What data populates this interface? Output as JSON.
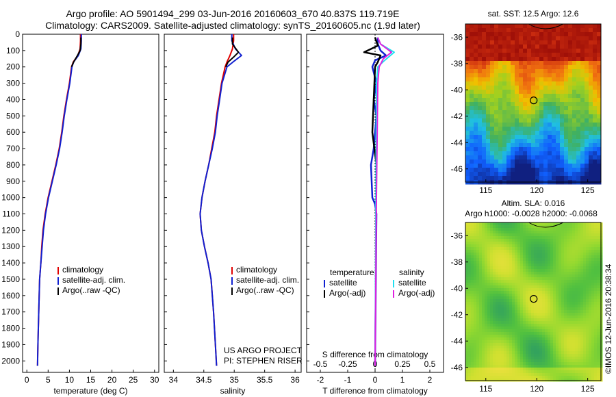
{
  "header": {
    "line1": "Argo profile: AO 5901494_299 03-Jun-2016 20160603_670 40.837S 119.719E",
    "line2": "Climatology: CARS2009. Satellite-adjusted climatology: synTS_20160605.nc (1.9d later)"
  },
  "stamp": "©IMOS 12-Jun-2016 20:38:34",
  "colors": {
    "climatology": "#e00000",
    "satellite": "#1020d0",
    "argo": "#000000",
    "salinity_satellite": "#20e0f0",
    "salinity_argo": "#e020e0"
  },
  "chart_data": [
    {
      "type": "line",
      "panel": "temperature",
      "xlabel": "temperature (deg C)",
      "ylabel": "",
      "xlim": [
        -1,
        31
      ],
      "ylim": [
        2070,
        0
      ],
      "xticks": [
        0,
        5,
        10,
        15,
        20,
        25,
        30
      ],
      "yticks": [
        0,
        100,
        200,
        300,
        400,
        500,
        600,
        700,
        800,
        900,
        1000,
        1100,
        1200,
        1300,
        1400,
        1500,
        1600,
        1700,
        1800,
        1900,
        2000
      ],
      "legend": [
        "climatology",
        "satellite-adj. clim.",
        "Argo(..raw -QC)"
      ],
      "series": [
        {
          "name": "climatology",
          "color": "#e00000",
          "x": [
            12.6,
            12.6,
            12.5,
            12.0,
            10.9,
            10.5,
            10.0,
            9.3,
            8.7,
            8.2,
            7.6,
            6.8,
            5.9,
            5.0,
            4.3,
            3.8,
            3.5,
            3.3,
            3.0,
            2.8,
            2.6,
            2.5
          ],
          "y": [
            0,
            40,
            90,
            130,
            170,
            200,
            300,
            400,
            500,
            600,
            700,
            800,
            900,
            1000,
            1100,
            1200,
            1300,
            1400,
            1500,
            1700,
            1900,
            2030
          ]
        },
        {
          "name": "satellite-adj. clim.",
          "color": "#1020d0",
          "x": [
            12.8,
            12.8,
            12.7,
            12.1,
            11.0,
            10.6,
            10.1,
            9.4,
            8.8,
            8.3,
            7.7,
            6.9,
            6.0,
            5.1,
            4.4,
            3.9,
            3.6,
            3.3,
            3.0,
            2.8,
            2.6,
            2.5
          ],
          "y": [
            0,
            40,
            90,
            130,
            170,
            200,
            300,
            400,
            500,
            600,
            700,
            800,
            900,
            1000,
            1100,
            1200,
            1300,
            1400,
            1500,
            1700,
            1900,
            2030
          ]
        },
        {
          "name": "Argo(..raw -QC)",
          "color": "#000000",
          "x": [
            12.7,
            12.7,
            12.5,
            11.9,
            11.0,
            10.5
          ],
          "y": [
            20,
            60,
            100,
            130,
            170,
            200
          ]
        }
      ]
    },
    {
      "type": "line",
      "panel": "salinity",
      "xlabel": "salinity",
      "ylabel": "",
      "xlim": [
        33.85,
        36.1
      ],
      "ylim": [
        2070,
        0
      ],
      "xticks": [
        34,
        34.5,
        35,
        35.5,
        36
      ],
      "legend": [
        "climatology",
        "satellite-adj. clim.",
        "Argo(..raw -QC)"
      ],
      "series": [
        {
          "name": "climatology",
          "color": "#e00000",
          "x": [
            34.99,
            34.99,
            34.97,
            34.93,
            34.88,
            34.85,
            34.79,
            34.75,
            34.71,
            34.68,
            34.63,
            34.58,
            34.52,
            34.47,
            34.44,
            34.46,
            34.51,
            34.57,
            34.62,
            34.66,
            34.69,
            34.71
          ],
          "y": [
            0,
            40,
            90,
            130,
            170,
            200,
            300,
            400,
            500,
            600,
            700,
            800,
            900,
            1000,
            1100,
            1200,
            1300,
            1400,
            1500,
            1700,
            1900,
            2030
          ]
        },
        {
          "name": "satellite-adj. clim.",
          "color": "#1020d0",
          "x": [
            34.96,
            34.96,
            35.02,
            35.12,
            34.98,
            34.88,
            34.8,
            34.76,
            34.72,
            34.69,
            34.64,
            34.58,
            34.52,
            34.47,
            34.44,
            34.46,
            34.51,
            34.57,
            34.62,
            34.66,
            34.69,
            34.71
          ],
          "y": [
            0,
            40,
            90,
            130,
            170,
            200,
            300,
            400,
            500,
            600,
            700,
            800,
            900,
            1000,
            1100,
            1200,
            1300,
            1400,
            1500,
            1700,
            1900,
            2030
          ]
        },
        {
          "name": "Argo(..raw -QC)",
          "color": "#000000",
          "x": [
            34.97,
            34.97,
            35.07,
            34.99,
            34.9,
            34.86
          ],
          "y": [
            20,
            60,
            110,
            140,
            170,
            200
          ]
        }
      ]
    },
    {
      "type": "line",
      "panel": "difference",
      "xlabel": "T difference from climatology",
      "top_label": "S difference from climatology",
      "xlim": [
        -2.5,
        2.5
      ],
      "ylim": [
        2070,
        0
      ],
      "xticks": [
        -2,
        -1,
        0,
        1,
        2
      ],
      "top_xticks": [
        "-0.5",
        "-0.25",
        "0",
        "0.25",
        "0.5"
      ],
      "legend_temperature": {
        "title": "temperature",
        "items": [
          "satellite",
          "Argo(-adj)"
        ]
      },
      "legend_salinity": {
        "title": "salinity",
        "items": [
          "satellite",
          "Argo(-adj)"
        ]
      },
      "series": [
        {
          "name": "satellite",
          "group": "temperature",
          "color": "#1020d0",
          "x": [
            0.1,
            0.1,
            0.2,
            0.4,
            0.0,
            -0.1,
            0.05,
            -0.05,
            0.05,
            0.0,
            -0.05,
            -0.15,
            -0.1,
            0.0,
            0.05,
            0.0
          ],
          "y": [
            20,
            60,
            100,
            130,
            160,
            200,
            300,
            400,
            500,
            600,
            700,
            800,
            1000,
            1040,
            1100,
            2030
          ]
        },
        {
          "name": "Argo(-adj)",
          "group": "temperature",
          "color": "#000000",
          "x": [
            0.0,
            0.1,
            -0.4,
            0.2,
            0.1,
            0.0,
            -0.1,
            0.05
          ],
          "y": [
            20,
            70,
            110,
            130,
            170,
            200,
            600,
            800
          ]
        },
        {
          "name": "satellite",
          "group": "salinity",
          "color": "#20e0f0",
          "x": [
            0.1,
            0.2,
            0.7,
            0.35,
            0.1,
            0.05,
            0.0
          ],
          "y": [
            20,
            60,
            110,
            160,
            200,
            300,
            2030
          ]
        },
        {
          "name": "Argo(-adj)",
          "group": "salinity",
          "color": "#e020e0",
          "x": [
            0.1,
            0.2,
            0.6,
            0.3,
            0.15,
            0.1,
            0.05,
            0.0
          ],
          "y": [
            20,
            60,
            110,
            150,
            200,
            300,
            1000,
            2030
          ]
        }
      ]
    },
    {
      "type": "heatmap",
      "panel": "sst-map",
      "title": "sat. SST: 12.5 Argo: 12.6",
      "xlim": [
        113,
        126.3
      ],
      "ylim": [
        -47,
        -35
      ],
      "xticks": [
        115,
        120,
        125
      ],
      "yticks": [
        -36,
        -38,
        -40,
        -42,
        -44,
        -46
      ],
      "marker": {
        "lon": 119.7,
        "lat": -40.8
      },
      "colorscale": [
        "#102080",
        "#1060ff",
        "#20c0e0",
        "#40b060",
        "#a0d020",
        "#f0c000",
        "#f07010",
        "#d03010",
        "#a01008"
      ]
    },
    {
      "type": "heatmap",
      "panel": "sla-map",
      "title": "Altim. SLA: 0.016",
      "subtitle": "Argo h1000: -0.0028 h2000: -0.0068",
      "xlim": [
        113,
        126.3
      ],
      "ylim": [
        -47,
        -35
      ],
      "xticks": [
        115,
        120,
        125
      ],
      "yticks": [
        -36,
        -38,
        -40,
        -42,
        -44,
        -46
      ],
      "marker": {
        "lon": 119.7,
        "lat": -40.8
      },
      "colorscale": [
        "#30a060",
        "#50c040",
        "#90d830",
        "#d0e030",
        "#f0e040"
      ]
    }
  ],
  "credit": {
    "line1": "US ARGO PROJECT",
    "line2": "PI: STEPHEN RISER"
  }
}
